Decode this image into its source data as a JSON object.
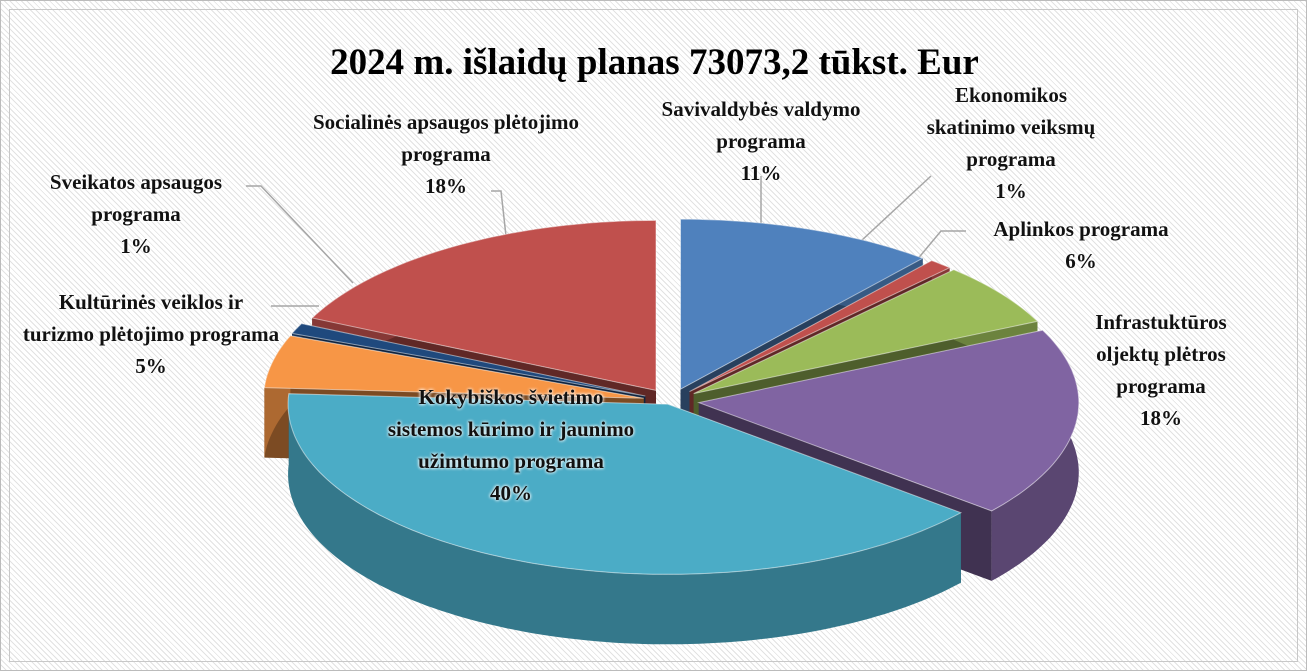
{
  "chart_data": {
    "type": "pie",
    "title": "2024 m. išlaidų planas 73073,2 tūkst. Eur",
    "categories": [
      "Savivaldybės valdymo programa",
      "Ekonomikos skatinimo veiksmų programa",
      "Aplinkos programa",
      "Infrastuktūros oljektų plėtros programa",
      "Kokybiškos švietimo sistemos kūrimo ir jaunimo užimtumo programa",
      "Kultūrinės veiklos ir turizmo plėtojimo programa",
      "Sveikatos apsaugos programa",
      "Socialinės apsaugos plėtojimo programa"
    ],
    "values": [
      11,
      1,
      6,
      18,
      40,
      5,
      1,
      18
    ],
    "value_labels": [
      "11%",
      "1%",
      "6%",
      "18%",
      "40%",
      "5%",
      "1%",
      "18%"
    ],
    "colors": [
      "#4f81bd",
      "#c0504d",
      "#9bbb59",
      "#8064a2",
      "#4bacc6",
      "#f79646",
      "#1f497d",
      "#c0504d"
    ]
  }
}
